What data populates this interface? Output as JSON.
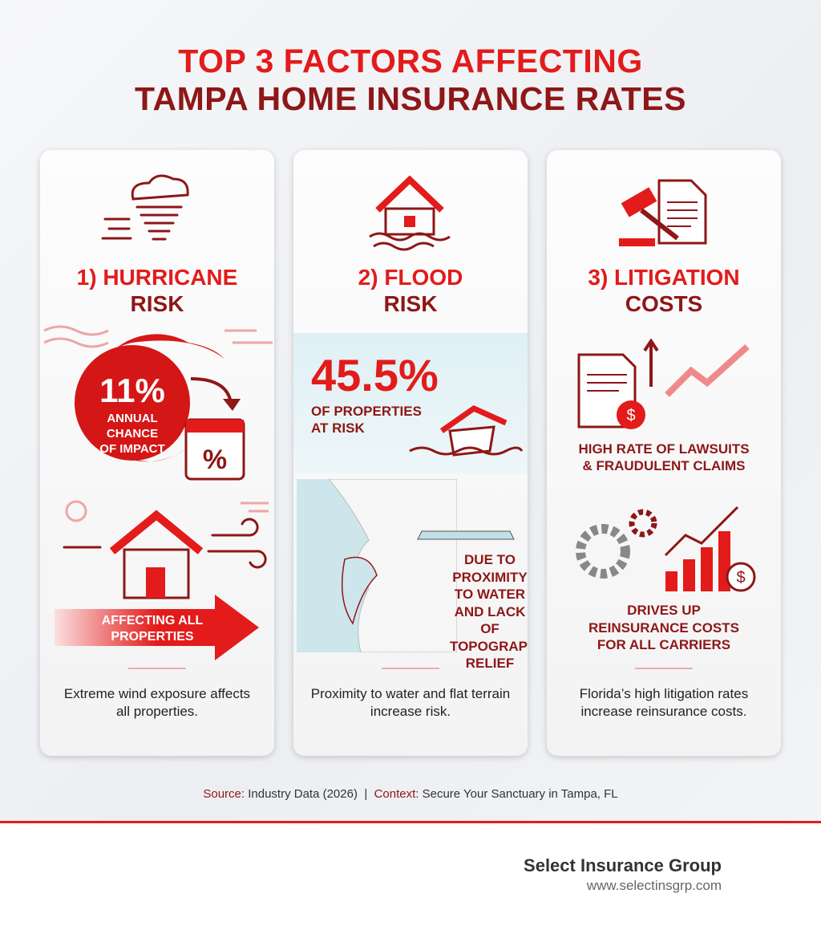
{
  "title": {
    "line1": "TOP 3 FACTORS AFFECTING",
    "line2": "TAMPA HOME INSURANCE RATES"
  },
  "colors": {
    "accent": "#e31b1b",
    "dark_accent": "#8e1717",
    "water": "#cfe8ee"
  },
  "cards": [
    {
      "heading1": "1) HURRICANE",
      "heading2": "RISK",
      "icon": "tornado-icon",
      "stat": "11%",
      "stat_label": [
        "ANNUAL",
        "CHANCE",
        "OF IMPACT"
      ],
      "banner": [
        "AFFECTING ALL",
        "PROPERTIES"
      ],
      "description": "Extreme wind exposure affects all properties."
    },
    {
      "heading1": "2) FLOOD",
      "heading2": "RISK",
      "icon": "flooded-house-icon",
      "stat": "45.5%",
      "stat_label": [
        "OF PROPERTIES",
        "AT RISK"
      ],
      "note": [
        "DUE TO",
        "PROXIMITY",
        "TO WATER",
        "AND LACK OF",
        "TOPOGRAPHIC",
        "RELIEF"
      ],
      "description": "Proximity to water and flat terrain increase risk."
    },
    {
      "heading1": "3) LITIGATION",
      "heading2": "COSTS",
      "icon": "gavel-document-icon",
      "point1": [
        "HIGH RATE OF LAWSUITS",
        "& FRAUDULENT CLAIMS"
      ],
      "point2": [
        "DRIVES UP",
        "REINSURANCE COSTS",
        "FOR ALL CARRIERS"
      ],
      "description": "Florida’s high litigation rates increase reinsurance costs."
    }
  ],
  "footer": {
    "source_key": "Source:",
    "source": "Industry Data (2026)",
    "sep": "|",
    "context_key": "Context:",
    "context": "Secure Your Sanctuary in Tampa, FL"
  },
  "brand": {
    "name": "Select Insurance Group",
    "url": "www.selectinsgrp.com"
  }
}
